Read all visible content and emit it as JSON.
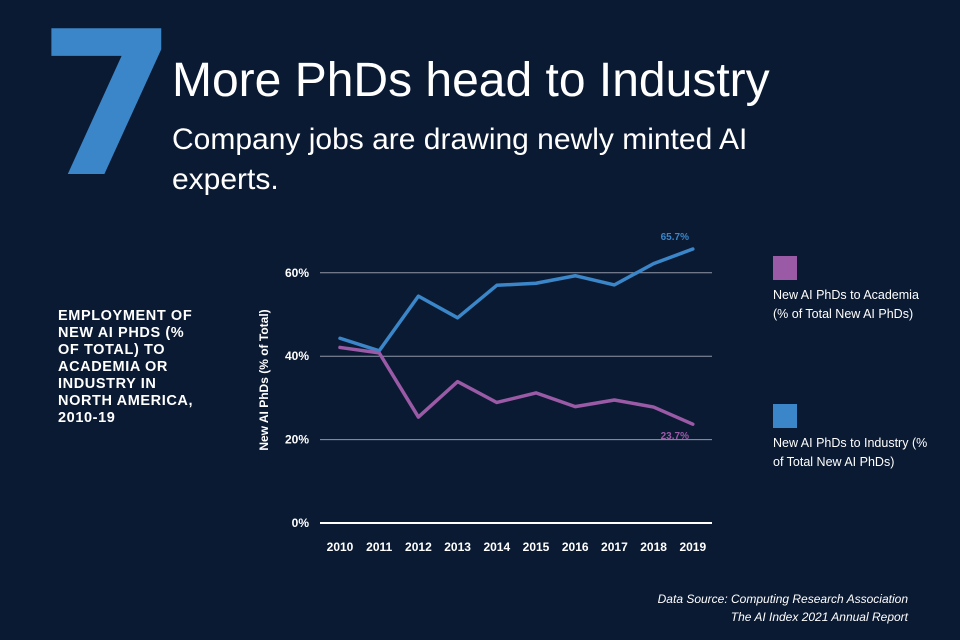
{
  "header": {
    "number": "7",
    "title": "More PhDs head to Industry",
    "subtitle": "Company jobs are drawing newly minted AI experts."
  },
  "side_title": "EMPLOYMENT OF NEW AI PHDS (% OF TOTAL) TO ACADEMIA OR INDUSTRY IN NORTH AMERICA, 2010-19",
  "legend": [
    {
      "label": "New AI PhDs to Academia (% of Total New AI PhDs)",
      "color": "#9a5aa6"
    },
    {
      "label": "New AI PhDs to Industry (% of Total New AI PhDs)",
      "color": "#3a86c8"
    }
  ],
  "footer": {
    "source": "Data Source: Computing Research Association",
    "report": "The AI Index 2021 Annual Report"
  },
  "chart_data": {
    "type": "line",
    "x": [
      "2010",
      "2011",
      "2012",
      "2013",
      "2014",
      "2015",
      "2016",
      "2017",
      "2018",
      "2019"
    ],
    "ylabel": "New AI PhDs (% of Total)",
    "yticks": [
      "0%",
      "20%",
      "40%",
      "60%"
    ],
    "ylim": [
      0,
      70
    ],
    "grid": true,
    "series": [
      {
        "name": "New AI PhDs to Industry (% of Total New AI PhDs)",
        "color": "#3a86c8",
        "values": [
          44.3,
          41.3,
          54.4,
          49.2,
          57.0,
          57.5,
          59.3,
          57.1,
          62.2,
          65.7
        ],
        "end_label": "65.7%"
      },
      {
        "name": "New AI PhDs to Academia (% of Total New AI PhDs)",
        "color": "#9a5aa6",
        "values": [
          42.1,
          40.8,
          25.4,
          33.9,
          28.9,
          31.2,
          27.9,
          29.5,
          27.8,
          23.7
        ],
        "end_label": "23.7%"
      }
    ]
  }
}
